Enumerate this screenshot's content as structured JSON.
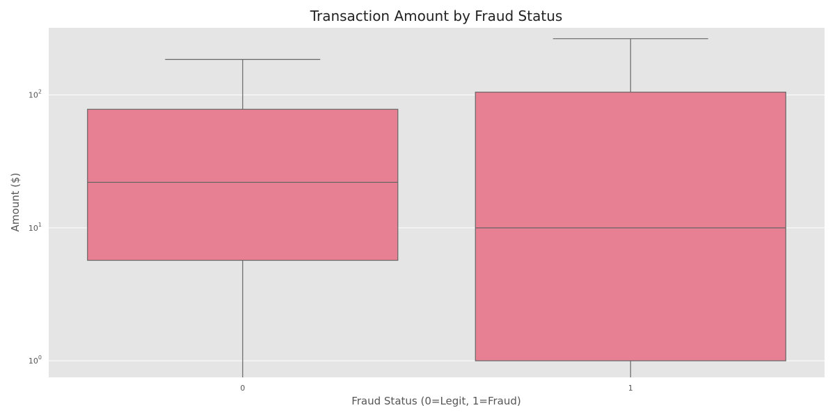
{
  "chart_data": {
    "type": "box",
    "title": "Transaction Amount by Fraud Status",
    "xlabel": "Fraud Status (0=Legit, 1=Fraud)",
    "ylabel": "Amount ($)",
    "yscale": "log",
    "ylim": [
      0.75,
      320
    ],
    "yticks": [
      {
        "value": 1,
        "base": "10",
        "exp": "0"
      },
      {
        "value": 10,
        "base": "10",
        "exp": "1"
      },
      {
        "value": 100,
        "base": "10",
        "exp": "2"
      }
    ],
    "categories": [
      "0",
      "1"
    ],
    "boxes": [
      {
        "category": "0",
        "whisker_low": 0.75,
        "q1": 5.7,
        "median": 22,
        "q3": 78,
        "whisker_high": 185
      },
      {
        "category": "1",
        "whisker_low": 0.75,
        "q1": 1.0,
        "median": 10,
        "q3": 105,
        "whisker_high": 265
      }
    ],
    "grid": true,
    "colors": {
      "box_fill": "#e88093",
      "box_edge": "#666666",
      "plot_bg": "#e5e5e5",
      "grid": "#ffffff"
    }
  }
}
